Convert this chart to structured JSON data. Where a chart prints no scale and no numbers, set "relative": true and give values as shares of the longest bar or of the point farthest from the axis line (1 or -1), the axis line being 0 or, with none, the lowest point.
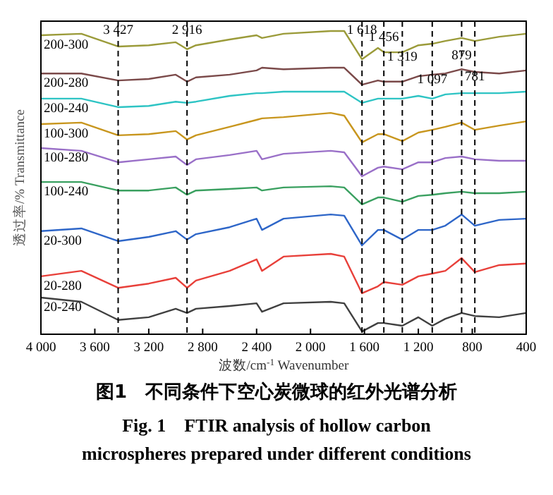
{
  "chart_data": {
    "type": "line",
    "title": "图1　不同条件下空心炭微球的红外光谱分析",
    "subtitle": "Fig. 1　FTIR analysis of hollow carbon microspheres prepared under different conditions",
    "xlabel": "波数/cm$^{-1}$  Wavenumber",
    "ylabel": "透过率/% Transmittance",
    "relative": true,
    "legend": false,
    "grid": false,
    "marker": "none",
    "line_style": "solid",
    "xlim": [
      4000,
      400
    ],
    "xticks": [
      {
        "value": 4000,
        "label": "4 000"
      },
      {
        "value": 3600,
        "label": "3 600"
      },
      {
        "value": 3200,
        "label": "3 200"
      },
      {
        "value": 2800,
        "label": "2 800"
      },
      {
        "value": 2400,
        "label": "2 400"
      },
      {
        "value": 2000,
        "label": "2 000"
      },
      {
        "value": 1600,
        "label": "1 600"
      },
      {
        "value": 1200,
        "label": "1 200"
      },
      800,
      400
    ],
    "x": [
      4000,
      3700,
      3427,
      3200,
      3000,
      2916,
      2850,
      2600,
      2400,
      2360,
      2200,
      1850,
      1750,
      1618,
      1500,
      1456,
      1319,
      1200,
      1097,
      1000,
      879,
      781,
      600,
      400
    ],
    "series": [
      {
        "name": "200-300",
        "color": "#9b9b3a",
        "values": [
          0.986,
          0.991,
          0.949,
          0.953,
          0.963,
          0.94,
          0.953,
          0.972,
          0.986,
          0.977,
          0.991,
          1,
          1,
          0.907,
          0.944,
          0.93,
          0.93,
          0.953,
          0.958,
          0.967,
          0.977,
          0.967,
          0.981,
          0.991
        ]
      },
      {
        "name": "200-280",
        "color": "#7b4a4a",
        "values": [
          0.86,
          0.86,
          0.837,
          0.842,
          0.856,
          0.833,
          0.847,
          0.856,
          0.87,
          0.879,
          0.874,
          0.879,
          0.879,
          0.823,
          0.837,
          0.833,
          0.833,
          0.851,
          0.856,
          0.86,
          0.874,
          0.865,
          0.86,
          0.87
        ]
      },
      {
        "name": "200-240",
        "color": "#2ec4c4",
        "values": [
          0.777,
          0.777,
          0.749,
          0.753,
          0.767,
          0.763,
          0.767,
          0.786,
          0.795,
          0.795,
          0.8,
          0.8,
          0.8,
          0.763,
          0.777,
          0.777,
          0.777,
          0.786,
          0.777,
          0.791,
          0.795,
          0.795,
          0.795,
          0.8
        ]
      },
      {
        "name": "100-300",
        "color": "#c8961e",
        "values": [
          0.693,
          0.698,
          0.656,
          0.66,
          0.67,
          0.642,
          0.656,
          0.684,
          0.707,
          0.712,
          0.716,
          0.73,
          0.721,
          0.633,
          0.66,
          0.66,
          0.637,
          0.665,
          0.674,
          0.684,
          0.698,
          0.674,
          0.688,
          0.702
        ]
      },
      {
        "name": "100-280",
        "color": "#9a70c8",
        "values": [
          0.614,
          0.605,
          0.567,
          0.577,
          0.586,
          0.558,
          0.577,
          0.591,
          0.605,
          0.577,
          0.595,
          0.605,
          0.6,
          0.521,
          0.549,
          0.553,
          0.544,
          0.567,
          0.567,
          0.581,
          0.586,
          0.577,
          0.572,
          0.572
        ]
      },
      {
        "name": "100-240",
        "color": "#3aa060",
        "values": [
          0.502,
          0.502,
          0.474,
          0.474,
          0.484,
          0.46,
          0.474,
          0.479,
          0.484,
          0.474,
          0.484,
          0.488,
          0.484,
          0.428,
          0.451,
          0.451,
          0.437,
          0.456,
          0.46,
          0.465,
          0.47,
          0.465,
          0.465,
          0.47
        ]
      },
      {
        "name": "20-300",
        "color": "#2e66c8",
        "values": [
          0.34,
          0.349,
          0.307,
          0.321,
          0.34,
          0.312,
          0.33,
          0.353,
          0.381,
          0.344,
          0.381,
          0.395,
          0.391,
          0.293,
          0.344,
          0.344,
          0.312,
          0.344,
          0.344,
          0.358,
          0.395,
          0.358,
          0.377,
          0.381
        ]
      },
      {
        "name": "20-280",
        "color": "#e8403a",
        "values": [
          0.191,
          0.209,
          0.153,
          0.167,
          0.186,
          0.153,
          0.177,
          0.209,
          0.247,
          0.209,
          0.256,
          0.265,
          0.256,
          0.135,
          0.158,
          0.172,
          0.163,
          0.191,
          0.2,
          0.209,
          0.251,
          0.205,
          0.228,
          0.233
        ]
      },
      {
        "name": "20-240",
        "color": "#404040",
        "values": [
          0.121,
          0.107,
          0.047,
          0.056,
          0.084,
          0.07,
          0.084,
          0.093,
          0.102,
          0.074,
          0.102,
          0.107,
          0.102,
          0.009,
          0.037,
          0.037,
          0.028,
          0.056,
          0.028,
          0.051,
          0.07,
          0.06,
          0.056,
          0.07
        ]
      }
    ],
    "ref_lines": [
      {
        "axis": "x",
        "value": 3427,
        "label": "3 427",
        "line_style": "dashed"
      },
      {
        "axis": "x",
        "value": 2916,
        "label": "2 916",
        "line_style": "dashed"
      },
      {
        "axis": "x",
        "value": 1618,
        "label": "1 618",
        "line_style": "dashed"
      },
      {
        "axis": "x",
        "value": 1456,
        "label": "1 456",
        "line_style": "dashed"
      },
      {
        "axis": "x",
        "value": 1319,
        "label": "1 319",
        "line_style": "dashed"
      },
      {
        "axis": "x",
        "value": 1097,
        "label": "1 097",
        "line_style": "dashed"
      },
      {
        "axis": "x",
        "value": 879,
        "label": "879",
        "line_style": "dashed"
      },
      {
        "axis": "x",
        "value": 781,
        "label": "781",
        "line_style": "dashed"
      }
    ]
  }
}
